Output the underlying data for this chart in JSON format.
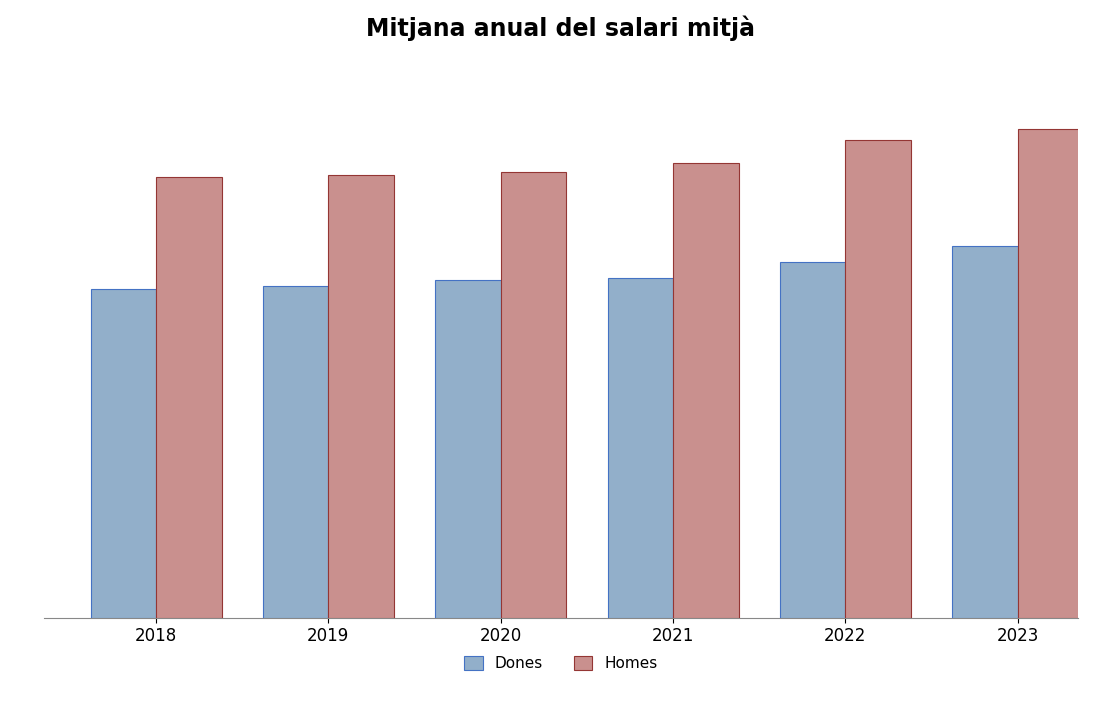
{
  "title": "Mitjana anual del salari mitjà",
  "years": [
    2018,
    2019,
    2020,
    2021,
    2022,
    2023
  ],
  "dones": [
    20500,
    20700,
    21100,
    21200,
    22200,
    23200
  ],
  "homes": [
    27500,
    27600,
    27800,
    28400,
    29800,
    30500
  ],
  "dones_color": "#92AFCA",
  "homes_color": "#C9908E",
  "dones_edge": "#4472C4",
  "homes_edge": "#943634",
  "background_color": "#FFFFFF",
  "ylim_max": 35000,
  "bar_width": 0.38,
  "legend_dones": "Dones",
  "legend_homes": "Homes",
  "title_fontsize": 17,
  "tick_fontsize": 12,
  "legend_fontsize": 11,
  "grid_color": "#CCCCCC",
  "n_gridlines": 6
}
